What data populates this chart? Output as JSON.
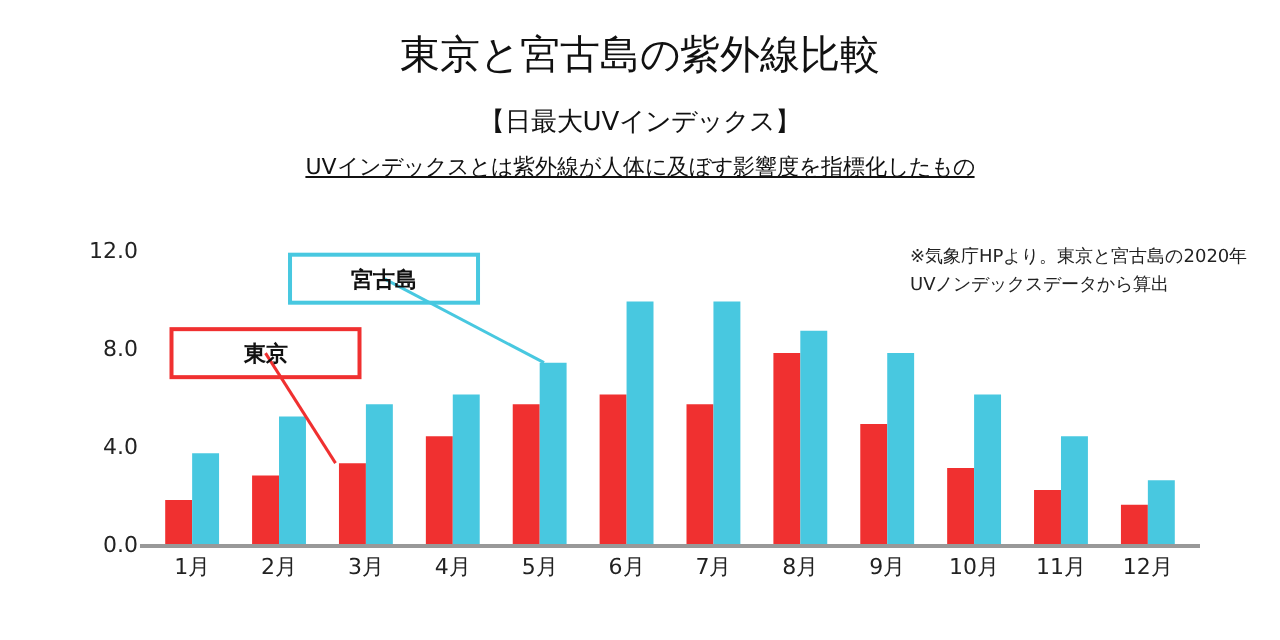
{
  "chart_data": {
    "type": "bar",
    "title": "東京と宮古島の紫外線比較",
    "subtitle": "【日最大UVインデックス】",
    "annotations": [
      "UVインデックスとは紫外線が人体に及ぼす影響度を指標化したもの",
      "※気象庁HPより。東京と宮古島の2020年UVノンデックスデータから算出"
    ],
    "categories": [
      "1月",
      "2月",
      "3月",
      "4月",
      "5月",
      "6月",
      "7月",
      "8月",
      "9月",
      "10月",
      "11月",
      "12月"
    ],
    "series": [
      {
        "name": "東京",
        "color": "#f03030",
        "values": [
          1.8,
          2.8,
          3.3,
          4.4,
          5.7,
          6.1,
          5.7,
          7.8,
          4.9,
          3.1,
          2.2,
          1.6
        ]
      },
      {
        "name": "宮古島",
        "color": "#48c8e0",
        "values": [
          3.7,
          5.2,
          5.7,
          6.1,
          7.4,
          9.9,
          9.9,
          8.7,
          7.8,
          6.1,
          4.4,
          2.6
        ]
      }
    ],
    "ylim": [
      0,
      12
    ],
    "yticks": [
      {
        "value": 0,
        "label": "0.0"
      },
      {
        "value": 4,
        "label": "4.0"
      },
      {
        "value": 8,
        "label": "8.0"
      },
      {
        "value": 12,
        "label": "12.0"
      }
    ],
    "grid": false,
    "legend": false
  }
}
